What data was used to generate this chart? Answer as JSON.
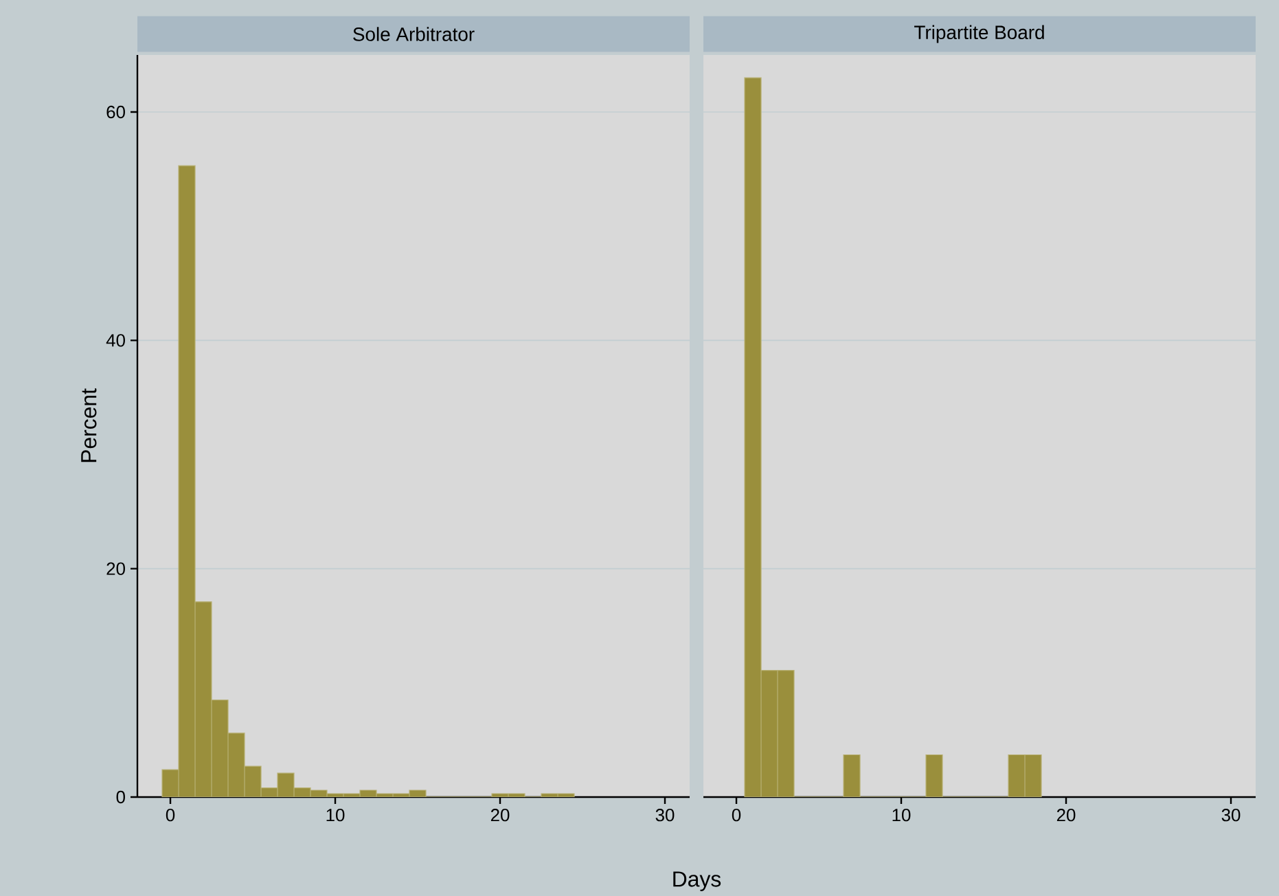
{
  "chart_data": [
    {
      "type": "histogram",
      "title": "Sole Arbitrator",
      "xlabel": "Days",
      "ylabel": "Percent",
      "color": "#9a8f3c",
      "bins": [
        -0.5,
        0.5,
        1.5,
        2.5,
        3.5,
        4.5,
        5.5,
        6.5,
        7.5,
        8.5,
        9.5,
        10.5,
        11.5,
        12.5,
        13.5,
        14.5,
        15.5,
        16.5,
        17.5,
        18.5,
        19.5,
        20.5,
        21.5,
        22.5,
        23.5,
        24.5
      ],
      "values": [
        2.4,
        55.3,
        17.1,
        8.5,
        5.6,
        2.7,
        0.8,
        2.1,
        0.8,
        0.6,
        0.3,
        0.3,
        0.6,
        0.3,
        0.3,
        0.6,
        0,
        0,
        0,
        0,
        0.3,
        0.3,
        0,
        0.3,
        0.3
      ],
      "xlim": [
        -2,
        31.5
      ],
      "xticks": [
        0,
        10,
        20,
        30
      ],
      "ylim": [
        0,
        65
      ],
      "yticks": [
        0,
        20,
        40,
        60
      ],
      "grid": "y"
    },
    {
      "type": "histogram",
      "title": "Tripartite Board",
      "color": "#9a8f3c",
      "bins": [
        0.5,
        1.5,
        2.5,
        3.5,
        4.5,
        5.5,
        6.5,
        7.5,
        8.5,
        9.5,
        10.5,
        11.5,
        12.5,
        13.5,
        14.5,
        15.5,
        16.5,
        17.5,
        18.5
      ],
      "values": [
        63.0,
        11.1,
        11.1,
        0,
        0,
        0,
        3.7,
        0,
        0,
        0,
        0,
        3.7,
        0,
        0,
        0,
        0,
        3.7,
        3.7
      ],
      "xlim": [
        -2,
        31.5
      ],
      "xticks": [
        0,
        10,
        20,
        30
      ],
      "ylim": [
        0,
        65
      ],
      "yticks": [
        0,
        20,
        40,
        60
      ],
      "grid": "y",
      "tick_labels": "x"
    }
  ]
}
